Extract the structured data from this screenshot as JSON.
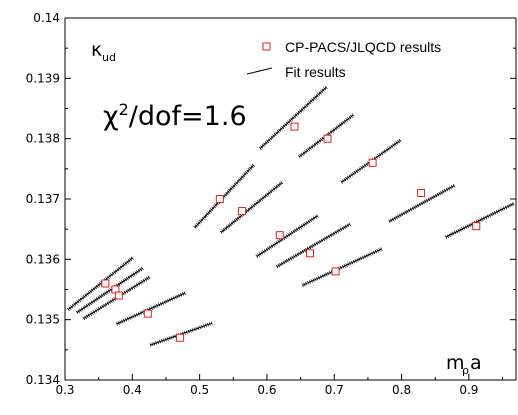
{
  "chart_data": {
    "type": "scatter",
    "xlim": [
      0.3,
      0.97
    ],
    "ylim": [
      0.134,
      0.14
    ],
    "x_ticks": [
      "0.3",
      "0.4",
      "0.5",
      "0.6",
      "0.7",
      "0.8",
      "0.9"
    ],
    "y_ticks": [
      "0.134",
      "0.135",
      "0.136",
      "0.137",
      "0.138",
      "0.139",
      "0.14"
    ],
    "ylabel_main": "κ",
    "ylabel_sub": "ud",
    "xlabel_main": "m",
    "xlabel_sub": "ρ",
    "xlabel_tail": "a",
    "annotation": "χ2/dof=1.6",
    "legend_position": "top-right",
    "grid": false,
    "series": [
      {
        "name": "CP-PACS/JLQCD results",
        "marker": "square",
        "color": "#e02020",
        "points": [
          {
            "x": 0.36,
            "y": 0.1356
          },
          {
            "x": 0.375,
            "y": 0.1355
          },
          {
            "x": 0.38,
            "y": 0.1354
          },
          {
            "x": 0.423,
            "y": 0.1351
          },
          {
            "x": 0.471,
            "y": 0.1347
          },
          {
            "x": 0.53,
            "y": 0.137
          },
          {
            "x": 0.563,
            "y": 0.1368
          },
          {
            "x": 0.619,
            "y": 0.1364
          },
          {
            "x": 0.641,
            "y": 0.1382
          },
          {
            "x": 0.664,
            "y": 0.1361
          },
          {
            "x": 0.69,
            "y": 0.138
          },
          {
            "x": 0.702,
            "y": 0.1358
          },
          {
            "x": 0.757,
            "y": 0.1376
          },
          {
            "x": 0.829,
            "y": 0.1371
          },
          {
            "x": 0.911,
            "y": 0.13655
          }
        ]
      },
      {
        "name": "Fit results",
        "color": "#000000",
        "segments": [
          {
            "x1": 0.305,
            "y1": 0.13517,
            "x2": 0.4,
            "y2": 0.13602
          },
          {
            "x1": 0.318,
            "y1": 0.13512,
            "x2": 0.415,
            "y2": 0.13585
          },
          {
            "x1": 0.328,
            "y1": 0.13502,
            "x2": 0.425,
            "y2": 0.1357
          },
          {
            "x1": 0.377,
            "y1": 0.13493,
            "x2": 0.478,
            "y2": 0.13544
          },
          {
            "x1": 0.427,
            "y1": 0.13458,
            "x2": 0.518,
            "y2": 0.13494
          },
          {
            "x1": 0.493,
            "y1": 0.13653,
            "x2": 0.58,
            "y2": 0.13756
          },
          {
            "x1": 0.532,
            "y1": 0.13645,
            "x2": 0.622,
            "y2": 0.13727
          },
          {
            "x1": 0.585,
            "y1": 0.13605,
            "x2": 0.675,
            "y2": 0.13672
          },
          {
            "x1": 0.59,
            "y1": 0.13784,
            "x2": 0.688,
            "y2": 0.13885
          },
          {
            "x1": 0.615,
            "y1": 0.13588,
            "x2": 0.723,
            "y2": 0.13658
          },
          {
            "x1": 0.648,
            "y1": 0.1377,
            "x2": 0.728,
            "y2": 0.13839
          },
          {
            "x1": 0.653,
            "y1": 0.13557,
            "x2": 0.77,
            "y2": 0.13617
          },
          {
            "x1": 0.711,
            "y1": 0.13728,
            "x2": 0.798,
            "y2": 0.13797
          },
          {
            "x1": 0.782,
            "y1": 0.13663,
            "x2": 0.878,
            "y2": 0.13722
          },
          {
            "x1": 0.866,
            "y1": 0.13637,
            "x2": 0.966,
            "y2": 0.13692
          }
        ]
      }
    ]
  }
}
